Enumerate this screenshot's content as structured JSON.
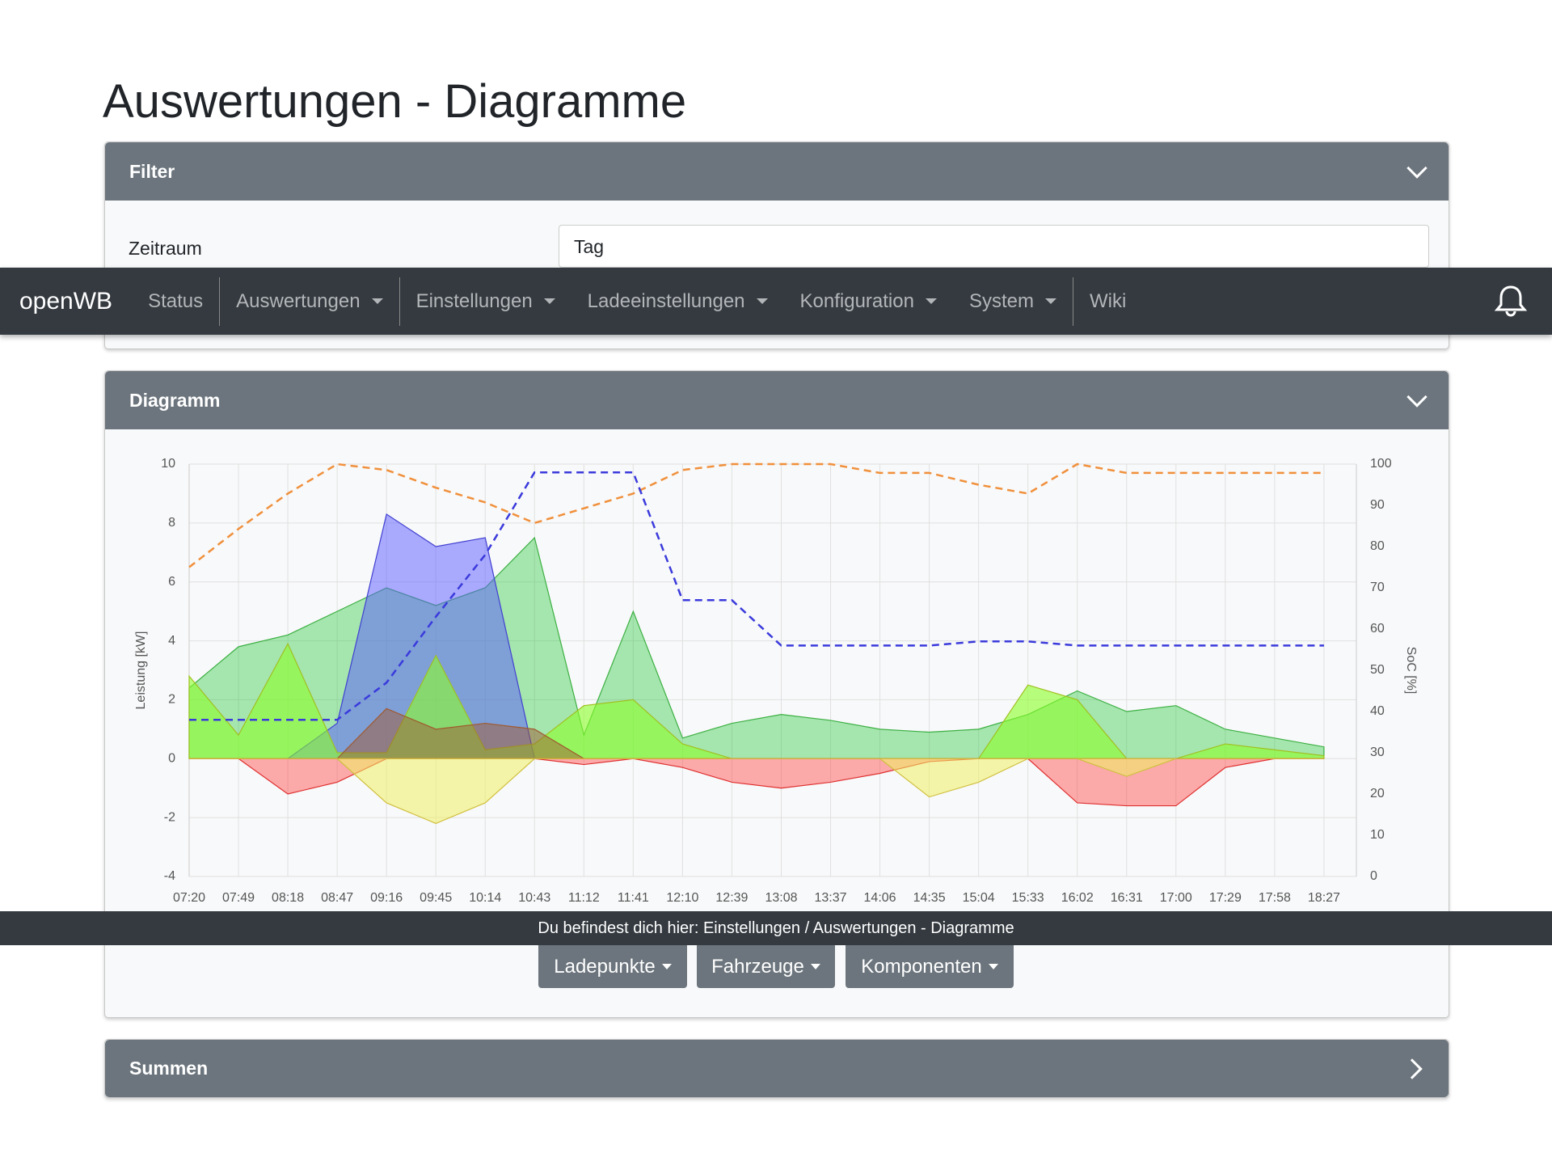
{
  "header": {
    "title": "Auswertungen - Diagramme"
  },
  "nav": {
    "brand": "openWB",
    "items": [
      "Status",
      "Auswertungen",
      "Einstellungen",
      "Ladeeinstellungen",
      "Konfiguration",
      "System",
      "Wiki"
    ]
  },
  "filter": {
    "title": "Filter",
    "label": "Zeitraum",
    "value": "Tag"
  },
  "diagram": {
    "title": "Diagramm",
    "buttons": [
      "Ladepunkte",
      "Fahrzeuge",
      "Komponenten"
    ]
  },
  "summen": {
    "title": "Summen"
  },
  "breadcrumb": "Du befindest dich hier: Einstellungen / Auswertungen - Diagramme",
  "chart_data": {
    "type": "area",
    "y_label": "Leistung [kW]",
    "y2_label": "SoC [%]",
    "categories": [
      "07:20",
      "07:49",
      "08:18",
      "08:47",
      "09:16",
      "09:45",
      "10:14",
      "10:43",
      "11:12",
      "11:41",
      "12:10",
      "12:39",
      "13:08",
      "13:37",
      "14:06",
      "14:35",
      "15:04",
      "15:33",
      "16:02",
      "16:31",
      "17:00",
      "17:29",
      "17:58",
      "18:27"
    ],
    "ylim": [
      -4,
      10
    ],
    "yticks": [
      -4,
      -2,
      0,
      2,
      4,
      6,
      8,
      10
    ],
    "y2lim": [
      0,
      100
    ],
    "y2ticks": [
      0,
      10,
      20,
      30,
      40,
      50,
      60,
      70,
      80,
      90,
      100
    ],
    "grid": true,
    "series": [
      {
        "color": "rgba(40,200,60,0.4)",
        "stroke": "#3cb043",
        "values": [
          2.4,
          3.8,
          4.2,
          5,
          5.8,
          5.2,
          5.8,
          7.5,
          0.8,
          5,
          0.7,
          1.2,
          1.5,
          1.3,
          1,
          0.9,
          1,
          1.5,
          2.3,
          1.6,
          1.8,
          1,
          0.7,
          0.4
        ]
      },
      {
        "color": "rgba(90,90,255,0.5)",
        "stroke": "#4040d0",
        "values": [
          0,
          0,
          0,
          1.2,
          8.3,
          7.2,
          7.5,
          0,
          0,
          0,
          0,
          0,
          0,
          0,
          0,
          0,
          0,
          0,
          0,
          0,
          0,
          0,
          0,
          0
        ]
      },
      {
        "color": "rgba(140,255,40,0.6)",
        "stroke": "#a0c020",
        "values": [
          2.8,
          0.8,
          3.9,
          0.2,
          0.2,
          3.5,
          0.3,
          0.5,
          1.8,
          2,
          0.5,
          0,
          0,
          0,
          0,
          0,
          0,
          2.5,
          2,
          0,
          0,
          0.5,
          0.3,
          0.1
        ]
      },
      {
        "color": "rgba(160,90,50,0.5)",
        "stroke": "#a05a30",
        "values": [
          0,
          0,
          0,
          0,
          1.7,
          1,
          1.2,
          1,
          0,
          0,
          0,
          0,
          0,
          0,
          0,
          0,
          0,
          0,
          0,
          0,
          0,
          0,
          0,
          0
        ]
      },
      {
        "color": "rgba(255,70,70,0.45)",
        "stroke": "#e03030",
        "values": [
          0,
          0,
          -1.2,
          -0.8,
          0,
          0,
          0,
          0,
          -0.2,
          0,
          -0.3,
          -0.8,
          -1,
          -0.8,
          -0.5,
          -0.1,
          0,
          0,
          -1.5,
          -1.6,
          -1.6,
          -0.3,
          0,
          0
        ]
      },
      {
        "color": "rgba(240,240,100,0.55)",
        "stroke": "#d0c040",
        "values": [
          0,
          0,
          0,
          0,
          -1.5,
          -2.2,
          -1.5,
          0,
          0,
          0,
          0,
          0,
          0,
          0,
          0,
          -1.3,
          -0.8,
          0,
          0,
          -0.6,
          0,
          0,
          0,
          0
        ]
      },
      {
        "color": "#f0903c",
        "style": "dashed",
        "values": [
          6.5,
          7.8,
          9,
          10,
          9.8,
          9.2,
          8.7,
          8,
          8.5,
          9,
          9.8,
          10,
          10,
          10,
          9.7,
          9.7,
          9.3,
          9,
          10,
          9.7,
          9.7,
          9.7,
          9.7,
          9.7
        ]
      },
      {
        "color": "#3a3adc",
        "style": "dashed",
        "axis": "y2",
        "values": [
          38,
          38,
          38,
          38,
          47,
          63,
          78,
          98,
          98,
          98,
          67,
          67,
          56,
          56,
          56,
          56,
          57,
          57,
          56,
          56,
          56,
          56,
          56,
          56
        ]
      }
    ]
  }
}
